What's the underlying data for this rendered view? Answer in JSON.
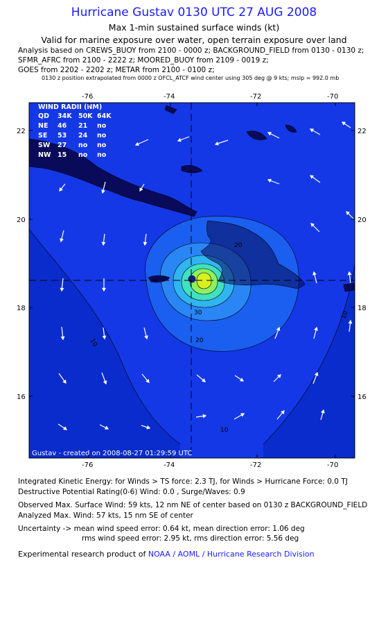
{
  "header": {
    "title": "Hurricane Gustav 0130 UTC 27 AUG 2008",
    "subtitle": "Max 1-min sustained surface winds (kt)",
    "valid": "Valid for marine exposure over water, open terrain exposure over land",
    "analysis_lines": [
      "Analysis based on  CREWS_BUOY from 2100 - 0000 z;  BACKGROUND_FIELD from 0130 - 0130 z;",
      "SFMR_AFRC from 2100 - 2222 z;  MOORED_BUOY from 2109 - 0019 z;",
      "GOES from 2202 - 2202 z;  METAR from 2100 - 0100 z;"
    ],
    "note": "0130 z position extrapolated from 0000 z OFCL_ATCF wind center using 305 deg @ 9 kts; mslp = 992.0 mb"
  },
  "map": {
    "lon_ticks": [
      "-76",
      "-74",
      "-72",
      "-70"
    ],
    "lat_ticks": [
      "22",
      "20",
      "18",
      "16"
    ],
    "ocean_color": "#1438e6",
    "land_color": "#0a0a5a",
    "contour_colors": [
      "#0a2ccc",
      "#1a5ff0",
      "#2a86f5",
      "#30b5f0",
      "#40e0c0",
      "#8cf060",
      "#d8f020"
    ],
    "contour_labels": [
      "10",
      "10",
      "20",
      "20",
      "30",
      "10"
    ],
    "footer_label": "Gustav - created on 2008-08-27 01:29:59 UTC"
  },
  "wind_radii": {
    "title": "WIND RADII (NM)",
    "headers": [
      "QD",
      "34K",
      "50K",
      "64K"
    ],
    "rows": [
      [
        "NE",
        "46",
        "21",
        "no"
      ],
      [
        "SE",
        "53",
        "24",
        "no"
      ],
      [
        "SW",
        "27",
        "no",
        "no"
      ],
      [
        "NW",
        "15",
        "no",
        "no"
      ]
    ]
  },
  "summary": {
    "ike": "Integrated Kinetic Energy:  for Winds > TS force: 2.3 TJ,  for Winds > Hurricane Force: 0.0 TJ",
    "dpr": "Destructive Potential Rating(0-6)   Wind: 0.0 , Surge/Waves: 0.9",
    "observed": "Observed Max. Surface Wind: 59 kts, 12 nm NE of center based on 0130 z BACKGROUND_FIELD",
    "analyzed": "Analyzed Max. Wind: 57 kts, 15 nm SE of center",
    "uncertainty1": "Uncertainty -> mean wind speed error: 0.64 kt,   mean direction error: 1.06 deg",
    "uncertainty2": "rms wind speed error: 2.95 kt,   rms direction error: 5.56 deg",
    "credit_prefix": "Experimental research product of",
    "credit_link": "NOAA / AOML / Hurricane Research Division"
  }
}
